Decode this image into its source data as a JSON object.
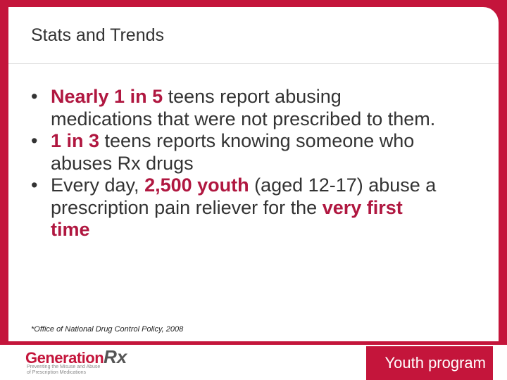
{
  "header": {
    "title": "Stats and Trends"
  },
  "bullets": [
    [
      {
        "text": "Nearly 1 in 5",
        "emphasis": true
      },
      {
        "text": " teens report abusing medications that were not prescribed to them.",
        "emphasis": false
      }
    ],
    [
      {
        "text": "1 in 3",
        "emphasis": true
      },
      {
        "text": " teens reports knowing someone who abuses Rx drugs",
        "emphasis": false
      }
    ],
    [
      {
        "text": "Every day, ",
        "emphasis": false
      },
      {
        "text": "2,500 youth",
        "emphasis": true
      },
      {
        "text": " (aged 12-17) abuse a prescription pain reliever for the ",
        "emphasis": false
      },
      {
        "text": "very first time",
        "emphasis": true
      }
    ]
  ],
  "footnote": "*Office of National Drug Control Policy, 2008",
  "footer": {
    "logo": {
      "word": "Generation",
      "mark": "Rx",
      "tagline": [
        "Preventing the Misuse and Abuse",
        "of Prescription Medications"
      ]
    },
    "program": [
      {
        "text": "Youth",
        "emphasis": true
      },
      {
        "text": " program",
        "emphasis": false
      }
    ]
  }
}
